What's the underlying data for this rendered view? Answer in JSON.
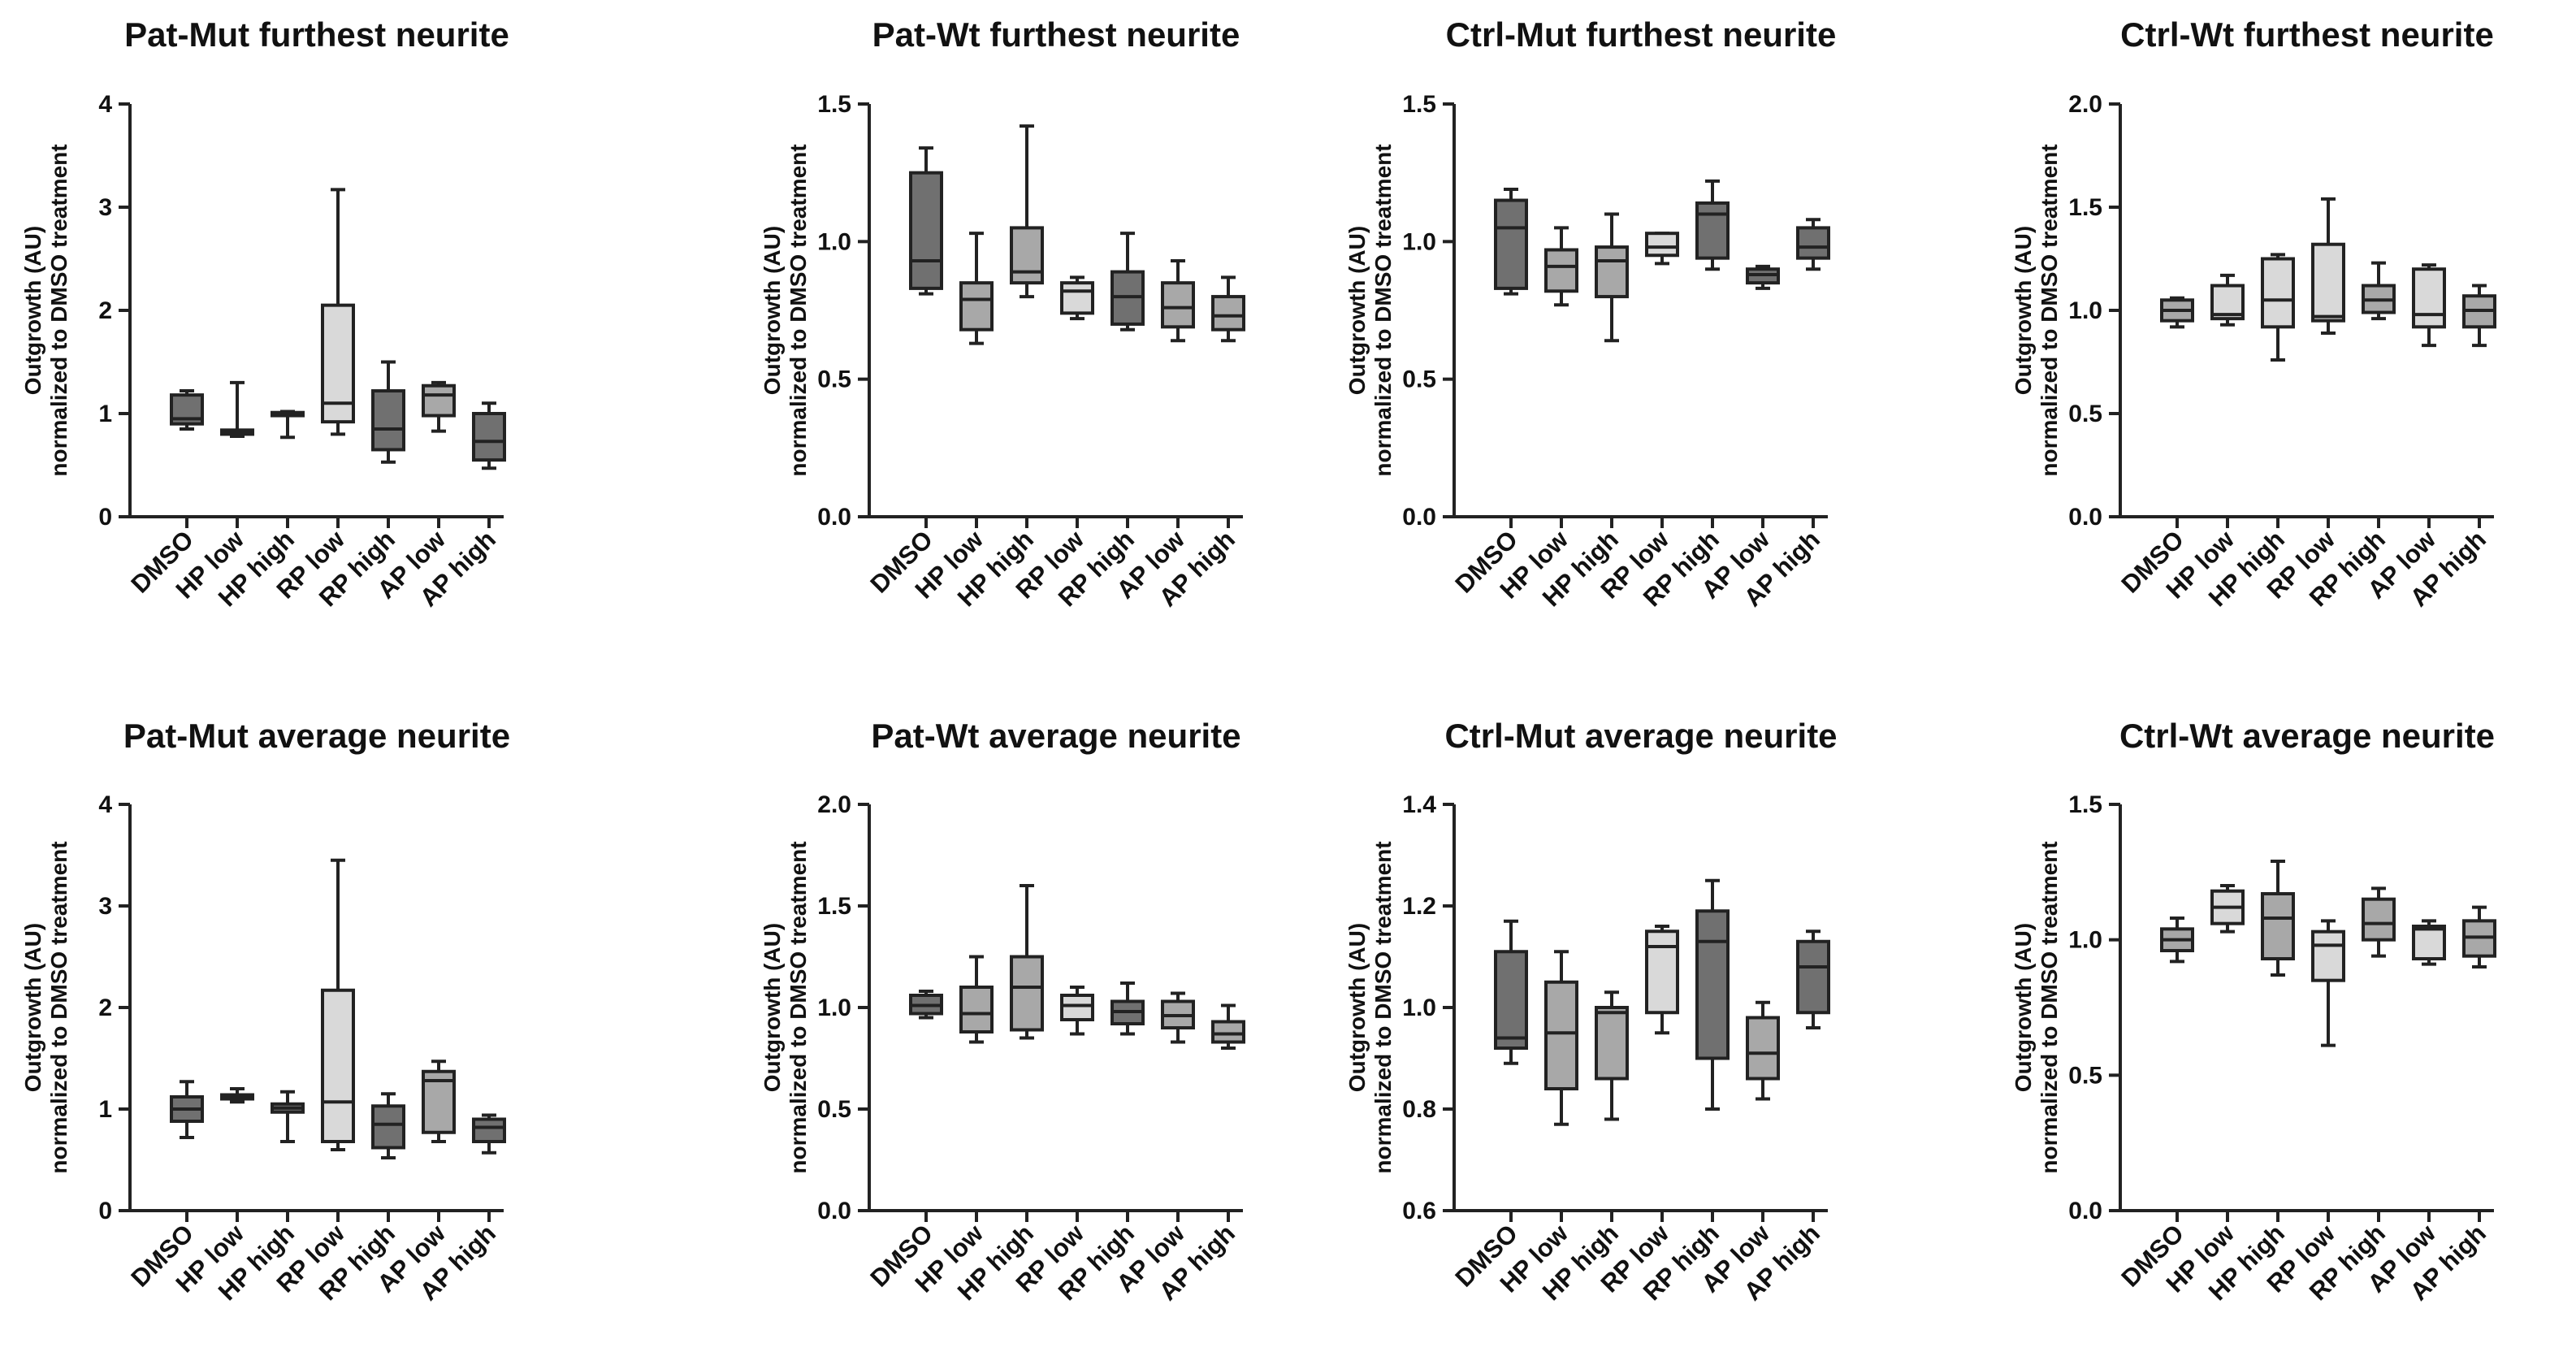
{
  "ylabel_line1": "Outgrowth (AU)",
  "ylabel_line2": "normalized to DMSO treatment",
  "categories": [
    "DMSO",
    "HP low",
    "HP high",
    "RP low",
    "RP high",
    "AP low",
    "AP high"
  ],
  "colors": {
    "dark": "#707070",
    "mid": "#a8a8a8",
    "light": "#d9d9d9",
    "axis": "#222222"
  },
  "chart_data": [
    {
      "type": "boxplot",
      "title": "Pat-Mut furthest neurite",
      "ylim": [
        0,
        4
      ],
      "yticks": [
        "0",
        "1",
        "2",
        "3",
        "4"
      ],
      "boxes": [
        {
          "category": "DMSO",
          "min": 0.85,
          "q1": 0.9,
          "median": 0.95,
          "q3": 1.18,
          "max": 1.22,
          "fill": "dark"
        },
        {
          "category": "HP low",
          "min": 0.78,
          "q1": 0.8,
          "median": 0.82,
          "q3": 0.84,
          "max": 1.3,
          "fill": "dark"
        },
        {
          "category": "HP high",
          "min": 0.77,
          "q1": 0.98,
          "median": 0.99,
          "q3": 1.01,
          "max": 1.02,
          "fill": "dark"
        },
        {
          "category": "RP low",
          "min": 0.8,
          "q1": 0.92,
          "median": 1.1,
          "q3": 2.05,
          "max": 3.17,
          "fill": "light"
        },
        {
          "category": "RP high",
          "min": 0.53,
          "q1": 0.65,
          "median": 0.85,
          "q3": 1.22,
          "max": 1.5,
          "fill": "dark"
        },
        {
          "category": "AP low",
          "min": 0.83,
          "q1": 0.98,
          "median": 1.18,
          "q3": 1.27,
          "max": 1.3,
          "fill": "mid"
        },
        {
          "category": "AP high",
          "min": 0.47,
          "q1": 0.55,
          "median": 0.73,
          "q3": 1.0,
          "max": 1.1,
          "fill": "dark"
        }
      ]
    },
    {
      "type": "boxplot",
      "title": "Pat-Wt furthest neurite",
      "ylim": [
        0,
        1.5
      ],
      "yticks": [
        "0.0",
        "0.5",
        "1.0",
        "1.5"
      ],
      "boxes": [
        {
          "category": "DMSO",
          "min": 0.81,
          "q1": 0.83,
          "median": 0.93,
          "q3": 1.25,
          "max": 1.34,
          "fill": "dark"
        },
        {
          "category": "HP low",
          "min": 0.63,
          "q1": 0.68,
          "median": 0.79,
          "q3": 0.85,
          "max": 1.03,
          "fill": "mid"
        },
        {
          "category": "HP high",
          "min": 0.8,
          "q1": 0.85,
          "median": 0.89,
          "q3": 1.05,
          "max": 1.42,
          "fill": "mid"
        },
        {
          "category": "RP low",
          "min": 0.72,
          "q1": 0.74,
          "median": 0.82,
          "q3": 0.85,
          "max": 0.87,
          "fill": "light"
        },
        {
          "category": "RP high",
          "min": 0.68,
          "q1": 0.7,
          "median": 0.8,
          "q3": 0.89,
          "max": 1.03,
          "fill": "dark"
        },
        {
          "category": "AP low",
          "min": 0.64,
          "q1": 0.69,
          "median": 0.76,
          "q3": 0.85,
          "max": 0.93,
          "fill": "mid"
        },
        {
          "category": "AP high",
          "min": 0.64,
          "q1": 0.68,
          "median": 0.73,
          "q3": 0.8,
          "max": 0.87,
          "fill": "mid"
        }
      ]
    },
    {
      "type": "boxplot",
      "title": "Ctrl-Mut furthest neurite",
      "ylim": [
        0,
        1.5
      ],
      "yticks": [
        "0.0",
        "0.5",
        "1.0",
        "1.5"
      ],
      "boxes": [
        {
          "category": "DMSO",
          "min": 0.81,
          "q1": 0.83,
          "median": 1.05,
          "q3": 1.15,
          "max": 1.19,
          "fill": "dark"
        },
        {
          "category": "HP low",
          "min": 0.77,
          "q1": 0.82,
          "median": 0.91,
          "q3": 0.97,
          "max": 1.05,
          "fill": "mid"
        },
        {
          "category": "HP high",
          "min": 0.64,
          "q1": 0.8,
          "median": 0.93,
          "q3": 0.98,
          "max": 1.1,
          "fill": "mid"
        },
        {
          "category": "RP low",
          "min": 0.92,
          "q1": 0.95,
          "median": 0.98,
          "q3": 1.03,
          "max": 1.03,
          "fill": "light"
        },
        {
          "category": "RP high",
          "min": 0.9,
          "q1": 0.94,
          "median": 1.1,
          "q3": 1.14,
          "max": 1.22,
          "fill": "dark"
        },
        {
          "category": "AP low",
          "min": 0.83,
          "q1": 0.85,
          "median": 0.88,
          "q3": 0.9,
          "max": 0.91,
          "fill": "dark"
        },
        {
          "category": "AP high",
          "min": 0.9,
          "q1": 0.94,
          "median": 0.98,
          "q3": 1.05,
          "max": 1.08,
          "fill": "dark"
        }
      ]
    },
    {
      "type": "boxplot",
      "title": "Ctrl-Wt furthest neurite",
      "ylim": [
        0,
        2.0
      ],
      "yticks": [
        "0.0",
        "0.5",
        "1.0",
        "1.5",
        "2.0"
      ],
      "boxes": [
        {
          "category": "DMSO",
          "min": 0.92,
          "q1": 0.95,
          "median": 1.0,
          "q3": 1.05,
          "max": 1.06,
          "fill": "mid"
        },
        {
          "category": "HP low",
          "min": 0.93,
          "q1": 0.96,
          "median": 0.98,
          "q3": 1.12,
          "max": 1.17,
          "fill": "light"
        },
        {
          "category": "HP high",
          "min": 0.76,
          "q1": 0.92,
          "median": 1.05,
          "q3": 1.25,
          "max": 1.27,
          "fill": "light"
        },
        {
          "category": "RP low",
          "min": 0.89,
          "q1": 0.95,
          "median": 0.97,
          "q3": 1.32,
          "max": 1.54,
          "fill": "light"
        },
        {
          "category": "RP high",
          "min": 0.96,
          "q1": 0.99,
          "median": 1.05,
          "q3": 1.12,
          "max": 1.23,
          "fill": "mid"
        },
        {
          "category": "AP low",
          "min": 0.83,
          "q1": 0.92,
          "median": 0.98,
          "q3": 1.2,
          "max": 1.22,
          "fill": "light"
        },
        {
          "category": "AP high",
          "min": 0.83,
          "q1": 0.92,
          "median": 1.0,
          "q3": 1.07,
          "max": 1.12,
          "fill": "mid"
        }
      ]
    },
    {
      "type": "boxplot",
      "title": "Pat-Mut average neurite",
      "ylim": [
        0,
        4
      ],
      "yticks": [
        "0",
        "1",
        "2",
        "3",
        "4"
      ],
      "boxes": [
        {
          "category": "DMSO",
          "min": 0.72,
          "q1": 0.88,
          "median": 1.0,
          "q3": 1.12,
          "max": 1.27,
          "fill": "dark"
        },
        {
          "category": "HP low",
          "min": 1.07,
          "q1": 1.1,
          "median": 1.12,
          "q3": 1.14,
          "max": 1.2,
          "fill": "dark"
        },
        {
          "category": "HP high",
          "min": 0.68,
          "q1": 0.97,
          "median": 1.01,
          "q3": 1.05,
          "max": 1.17,
          "fill": "dark"
        },
        {
          "category": "RP low",
          "min": 0.6,
          "q1": 0.68,
          "median": 1.07,
          "q3": 2.17,
          "max": 3.45,
          "fill": "light"
        },
        {
          "category": "RP high",
          "min": 0.52,
          "q1": 0.62,
          "median": 0.85,
          "q3": 1.03,
          "max": 1.15,
          "fill": "dark"
        },
        {
          "category": "AP low",
          "min": 0.68,
          "q1": 0.77,
          "median": 1.28,
          "q3": 1.37,
          "max": 1.47,
          "fill": "mid"
        },
        {
          "category": "AP high",
          "min": 0.57,
          "q1": 0.68,
          "median": 0.82,
          "q3": 0.9,
          "max": 0.94,
          "fill": "dark"
        }
      ]
    },
    {
      "type": "boxplot",
      "title": "Pat-Wt average neurite",
      "ylim": [
        0,
        2.0
      ],
      "yticks": [
        "0.0",
        "0.5",
        "1.0",
        "1.5",
        "2.0"
      ],
      "boxes": [
        {
          "category": "DMSO",
          "min": 0.95,
          "q1": 0.97,
          "median": 1.01,
          "q3": 1.06,
          "max": 1.08,
          "fill": "dark"
        },
        {
          "category": "HP low",
          "min": 0.83,
          "q1": 0.88,
          "median": 0.97,
          "q3": 1.1,
          "max": 1.25,
          "fill": "mid"
        },
        {
          "category": "HP high",
          "min": 0.85,
          "q1": 0.89,
          "median": 1.1,
          "q3": 1.25,
          "max": 1.6,
          "fill": "mid"
        },
        {
          "category": "RP low",
          "min": 0.87,
          "q1": 0.94,
          "median": 1.01,
          "q3": 1.06,
          "max": 1.1,
          "fill": "light"
        },
        {
          "category": "RP high",
          "min": 0.87,
          "q1": 0.92,
          "median": 0.98,
          "q3": 1.03,
          "max": 1.12,
          "fill": "dark"
        },
        {
          "category": "AP low",
          "min": 0.83,
          "q1": 0.9,
          "median": 0.96,
          "q3": 1.03,
          "max": 1.07,
          "fill": "mid"
        },
        {
          "category": "AP high",
          "min": 0.8,
          "q1": 0.83,
          "median": 0.87,
          "q3": 0.93,
          "max": 1.01,
          "fill": "mid"
        }
      ]
    },
    {
      "type": "boxplot",
      "title": "Ctrl-Mut average neurite",
      "ylim": [
        0.6,
        1.4
      ],
      "yticks": [
        "0.6",
        "0.8",
        "1.0",
        "1.2",
        "1.4"
      ],
      "boxes": [
        {
          "category": "DMSO",
          "min": 0.89,
          "q1": 0.92,
          "median": 0.94,
          "q3": 1.11,
          "max": 1.17,
          "fill": "dark"
        },
        {
          "category": "HP low",
          "min": 0.77,
          "q1": 0.84,
          "median": 0.95,
          "q3": 1.05,
          "max": 1.11,
          "fill": "mid"
        },
        {
          "category": "HP high",
          "min": 0.78,
          "q1": 0.86,
          "median": 0.99,
          "q3": 1.0,
          "max": 1.03,
          "fill": "mid"
        },
        {
          "category": "RP low",
          "min": 0.95,
          "q1": 0.99,
          "median": 1.12,
          "q3": 1.15,
          "max": 1.16,
          "fill": "light"
        },
        {
          "category": "RP high",
          "min": 0.8,
          "q1": 0.9,
          "median": 1.13,
          "q3": 1.19,
          "max": 1.25,
          "fill": "dark"
        },
        {
          "category": "AP low",
          "min": 0.82,
          "q1": 0.86,
          "median": 0.91,
          "q3": 0.98,
          "max": 1.01,
          "fill": "mid"
        },
        {
          "category": "AP high",
          "min": 0.96,
          "q1": 0.99,
          "median": 1.08,
          "q3": 1.13,
          "max": 1.15,
          "fill": "dark"
        }
      ]
    },
    {
      "type": "boxplot",
      "title": "Ctrl-Wt average neurite",
      "ylim": [
        0,
        1.5
      ],
      "yticks": [
        "0.0",
        "0.5",
        "1.0",
        "1.5"
      ],
      "boxes": [
        {
          "category": "DMSO",
          "min": 0.92,
          "q1": 0.96,
          "median": 1.0,
          "q3": 1.04,
          "max": 1.08,
          "fill": "mid"
        },
        {
          "category": "HP low",
          "min": 1.03,
          "q1": 1.06,
          "median": 1.12,
          "q3": 1.18,
          "max": 1.2,
          "fill": "light"
        },
        {
          "category": "HP high",
          "min": 0.87,
          "q1": 0.93,
          "median": 1.08,
          "q3": 1.17,
          "max": 1.29,
          "fill": "mid"
        },
        {
          "category": "RP low",
          "min": 0.61,
          "q1": 0.85,
          "median": 0.98,
          "q3": 1.03,
          "max": 1.07,
          "fill": "light"
        },
        {
          "category": "RP high",
          "min": 0.94,
          "q1": 1.0,
          "median": 1.06,
          "q3": 1.15,
          "max": 1.19,
          "fill": "mid"
        },
        {
          "category": "AP low",
          "min": 0.91,
          "q1": 0.93,
          "median": 1.04,
          "q3": 1.05,
          "max": 1.07,
          "fill": "light"
        },
        {
          "category": "AP high",
          "min": 0.9,
          "q1": 0.94,
          "median": 1.01,
          "q3": 1.07,
          "max": 1.12,
          "fill": "mid"
        }
      ]
    }
  ]
}
